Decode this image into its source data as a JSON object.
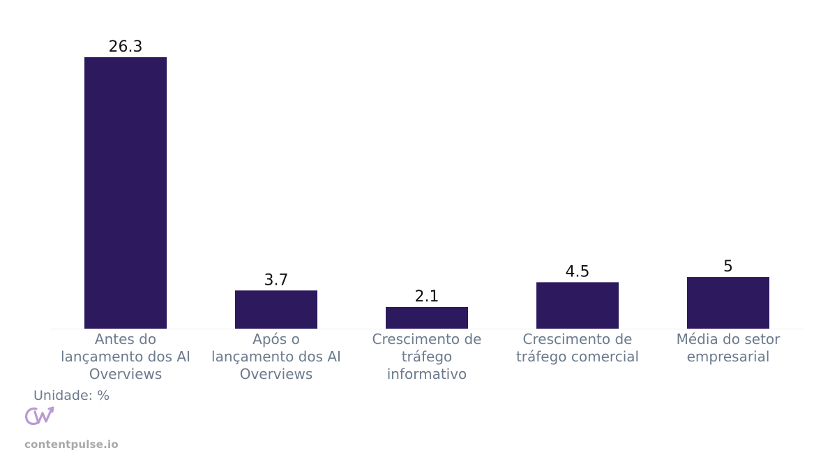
{
  "chart_data": {
    "type": "bar",
    "categories": [
      [
        "Antes do",
        "lançamento dos AI",
        "Overviews"
      ],
      [
        "Após o",
        "lançamento dos AI",
        "Overviews"
      ],
      [
        "Crescimento de",
        "tráfego",
        "informativo"
      ],
      [
        "Crescimento de",
        "tráfego comercial"
      ],
      [
        "Média do setor",
        "empresarial"
      ]
    ],
    "values": [
      26.3,
      3.7,
      2.1,
      4.5,
      5
    ],
    "value_labels": [
      "26.3",
      "3.7",
      "2.1",
      "4.5",
      "5"
    ],
    "ylim": [
      0,
      26.3
    ],
    "grid": false,
    "legend": "none",
    "bar_color": "#2d1a5e"
  },
  "footer": {
    "unit_label": "Unidade: %",
    "brand": "contentpulse.io",
    "logo_icon": "cw-logo-icon",
    "logo_color": "#b99ad3"
  }
}
